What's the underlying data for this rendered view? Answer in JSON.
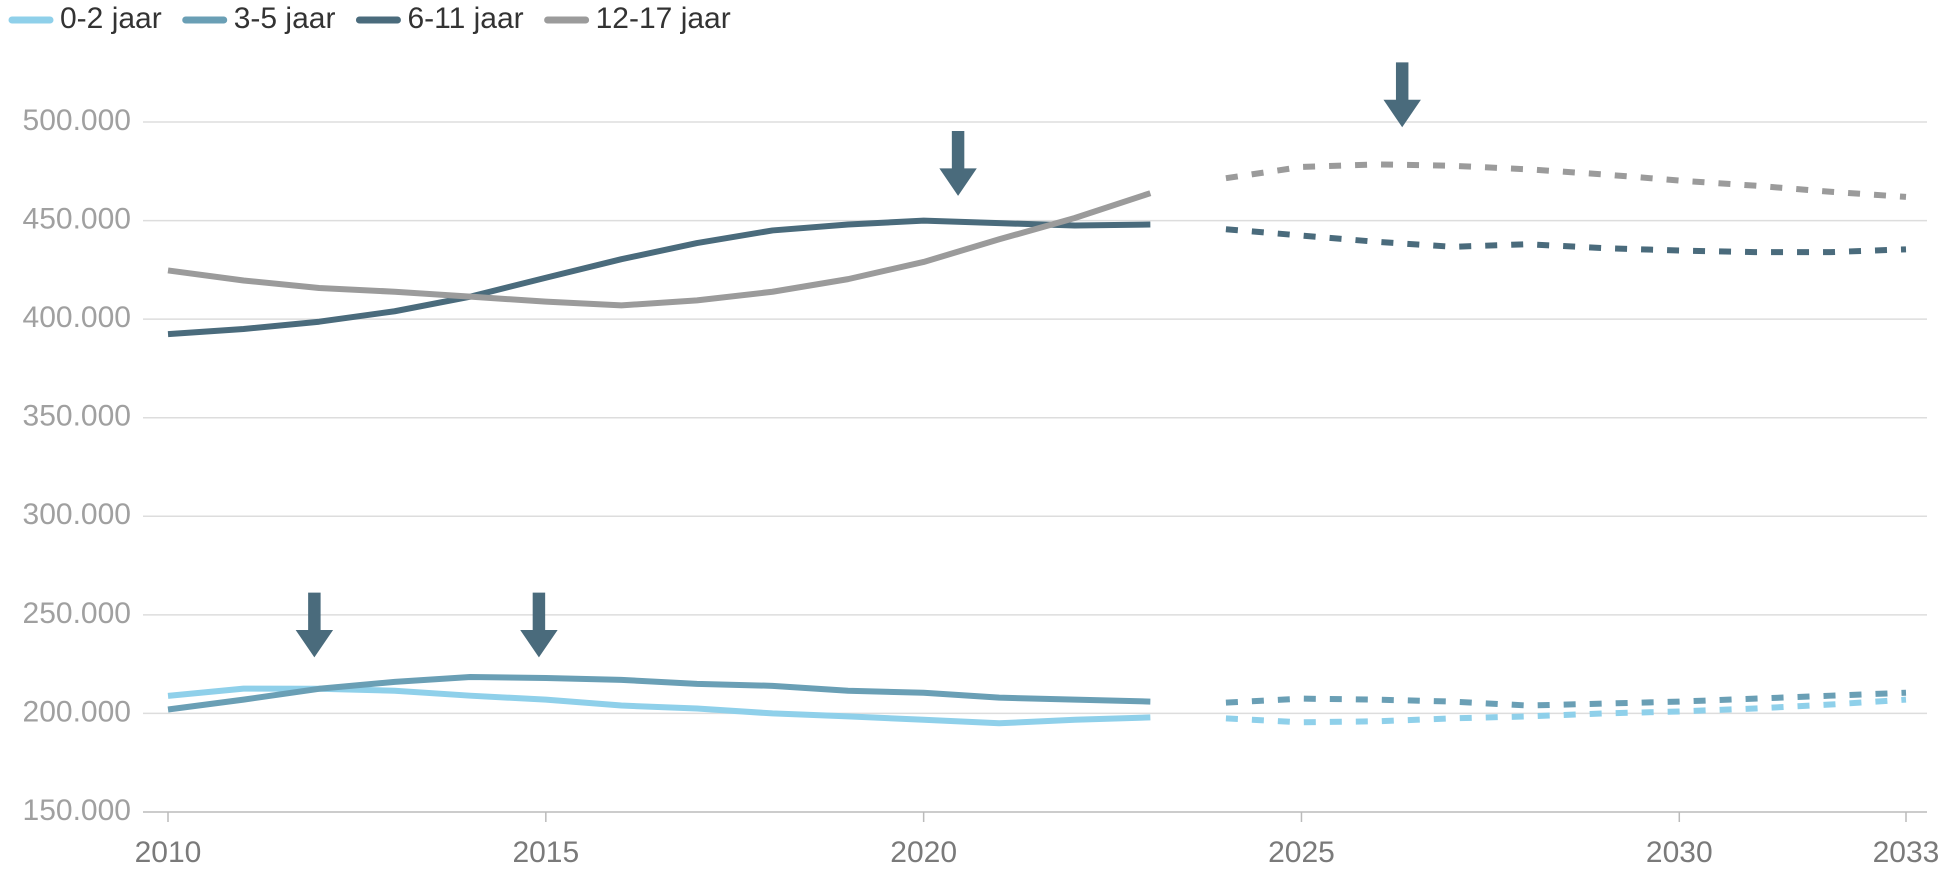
{
  "chart_data": {
    "type": "line",
    "x": [
      2010,
      2011,
      2012,
      2013,
      2014,
      2015,
      2016,
      2017,
      2018,
      2019,
      2020,
      2021,
      2022,
      2023,
      2024,
      2025,
      2026,
      2027,
      2028,
      2029,
      2030,
      2031,
      2032,
      2033
    ],
    "forecast_from": 2024,
    "series": [
      {
        "name": "0-2 jaar",
        "color": "#8fd0ea",
        "values": [
          208900,
          212600,
          212500,
          211500,
          209000,
          207000,
          204000,
          202500,
          200000,
          198500,
          196800,
          195000,
          196800,
          198000,
          197500,
          195500,
          196000,
          197500,
          198500,
          200000,
          201000,
          202500,
          204500,
          207000
        ]
      },
      {
        "name": "3-5 jaar",
        "color": "#6a9fb5",
        "values": [
          202000,
          207000,
          212500,
          216000,
          218500,
          218000,
          217000,
          215000,
          214000,
          211500,
          210500,
          208000,
          207000,
          206000,
          205500,
          207500,
          207000,
          206000,
          204000,
          205000,
          206000,
          207500,
          209000,
          210500
        ]
      },
      {
        "name": "6-11 jaar",
        "color": "#4a6b7c",
        "values": [
          392400,
          395000,
          398700,
          404000,
          411400,
          421000,
          430400,
          438600,
          445000,
          448000,
          450000,
          448700,
          447500,
          448000,
          445600,
          442400,
          439200,
          436700,
          438000,
          436000,
          434800,
          434000,
          434000,
          435400
        ]
      },
      {
        "name": "12-17 jaar",
        "color": "#9b9b9b",
        "values": [
          424700,
          419600,
          415800,
          413900,
          411400,
          408900,
          407000,
          409500,
          413900,
          420300,
          429000,
          440500,
          451300,
          463900,
          471500,
          477200,
          478500,
          477800,
          476000,
          473400,
          470300,
          467700,
          464600,
          462000
        ]
      }
    ],
    "xlim": [
      2010,
      2033
    ],
    "xticks": [
      2010,
      2015,
      2020,
      2025,
      2030,
      2033
    ],
    "ylim": [
      150000,
      500000
    ],
    "yticks": [
      {
        "value": 150000,
        "label": "150.000"
      },
      {
        "value": 200000,
        "label": "200.000"
      },
      {
        "value": 250000,
        "label": "250.000"
      },
      {
        "value": 300000,
        "label": "300.000"
      },
      {
        "value": 350000,
        "label": "350.000"
      },
      {
        "value": 400000,
        "label": "400.000"
      },
      {
        "value": 450000,
        "label": "450.000"
      },
      {
        "value": 500000,
        "label": "500.000"
      }
    ],
    "grid": true,
    "legend": "top-left"
  }
}
